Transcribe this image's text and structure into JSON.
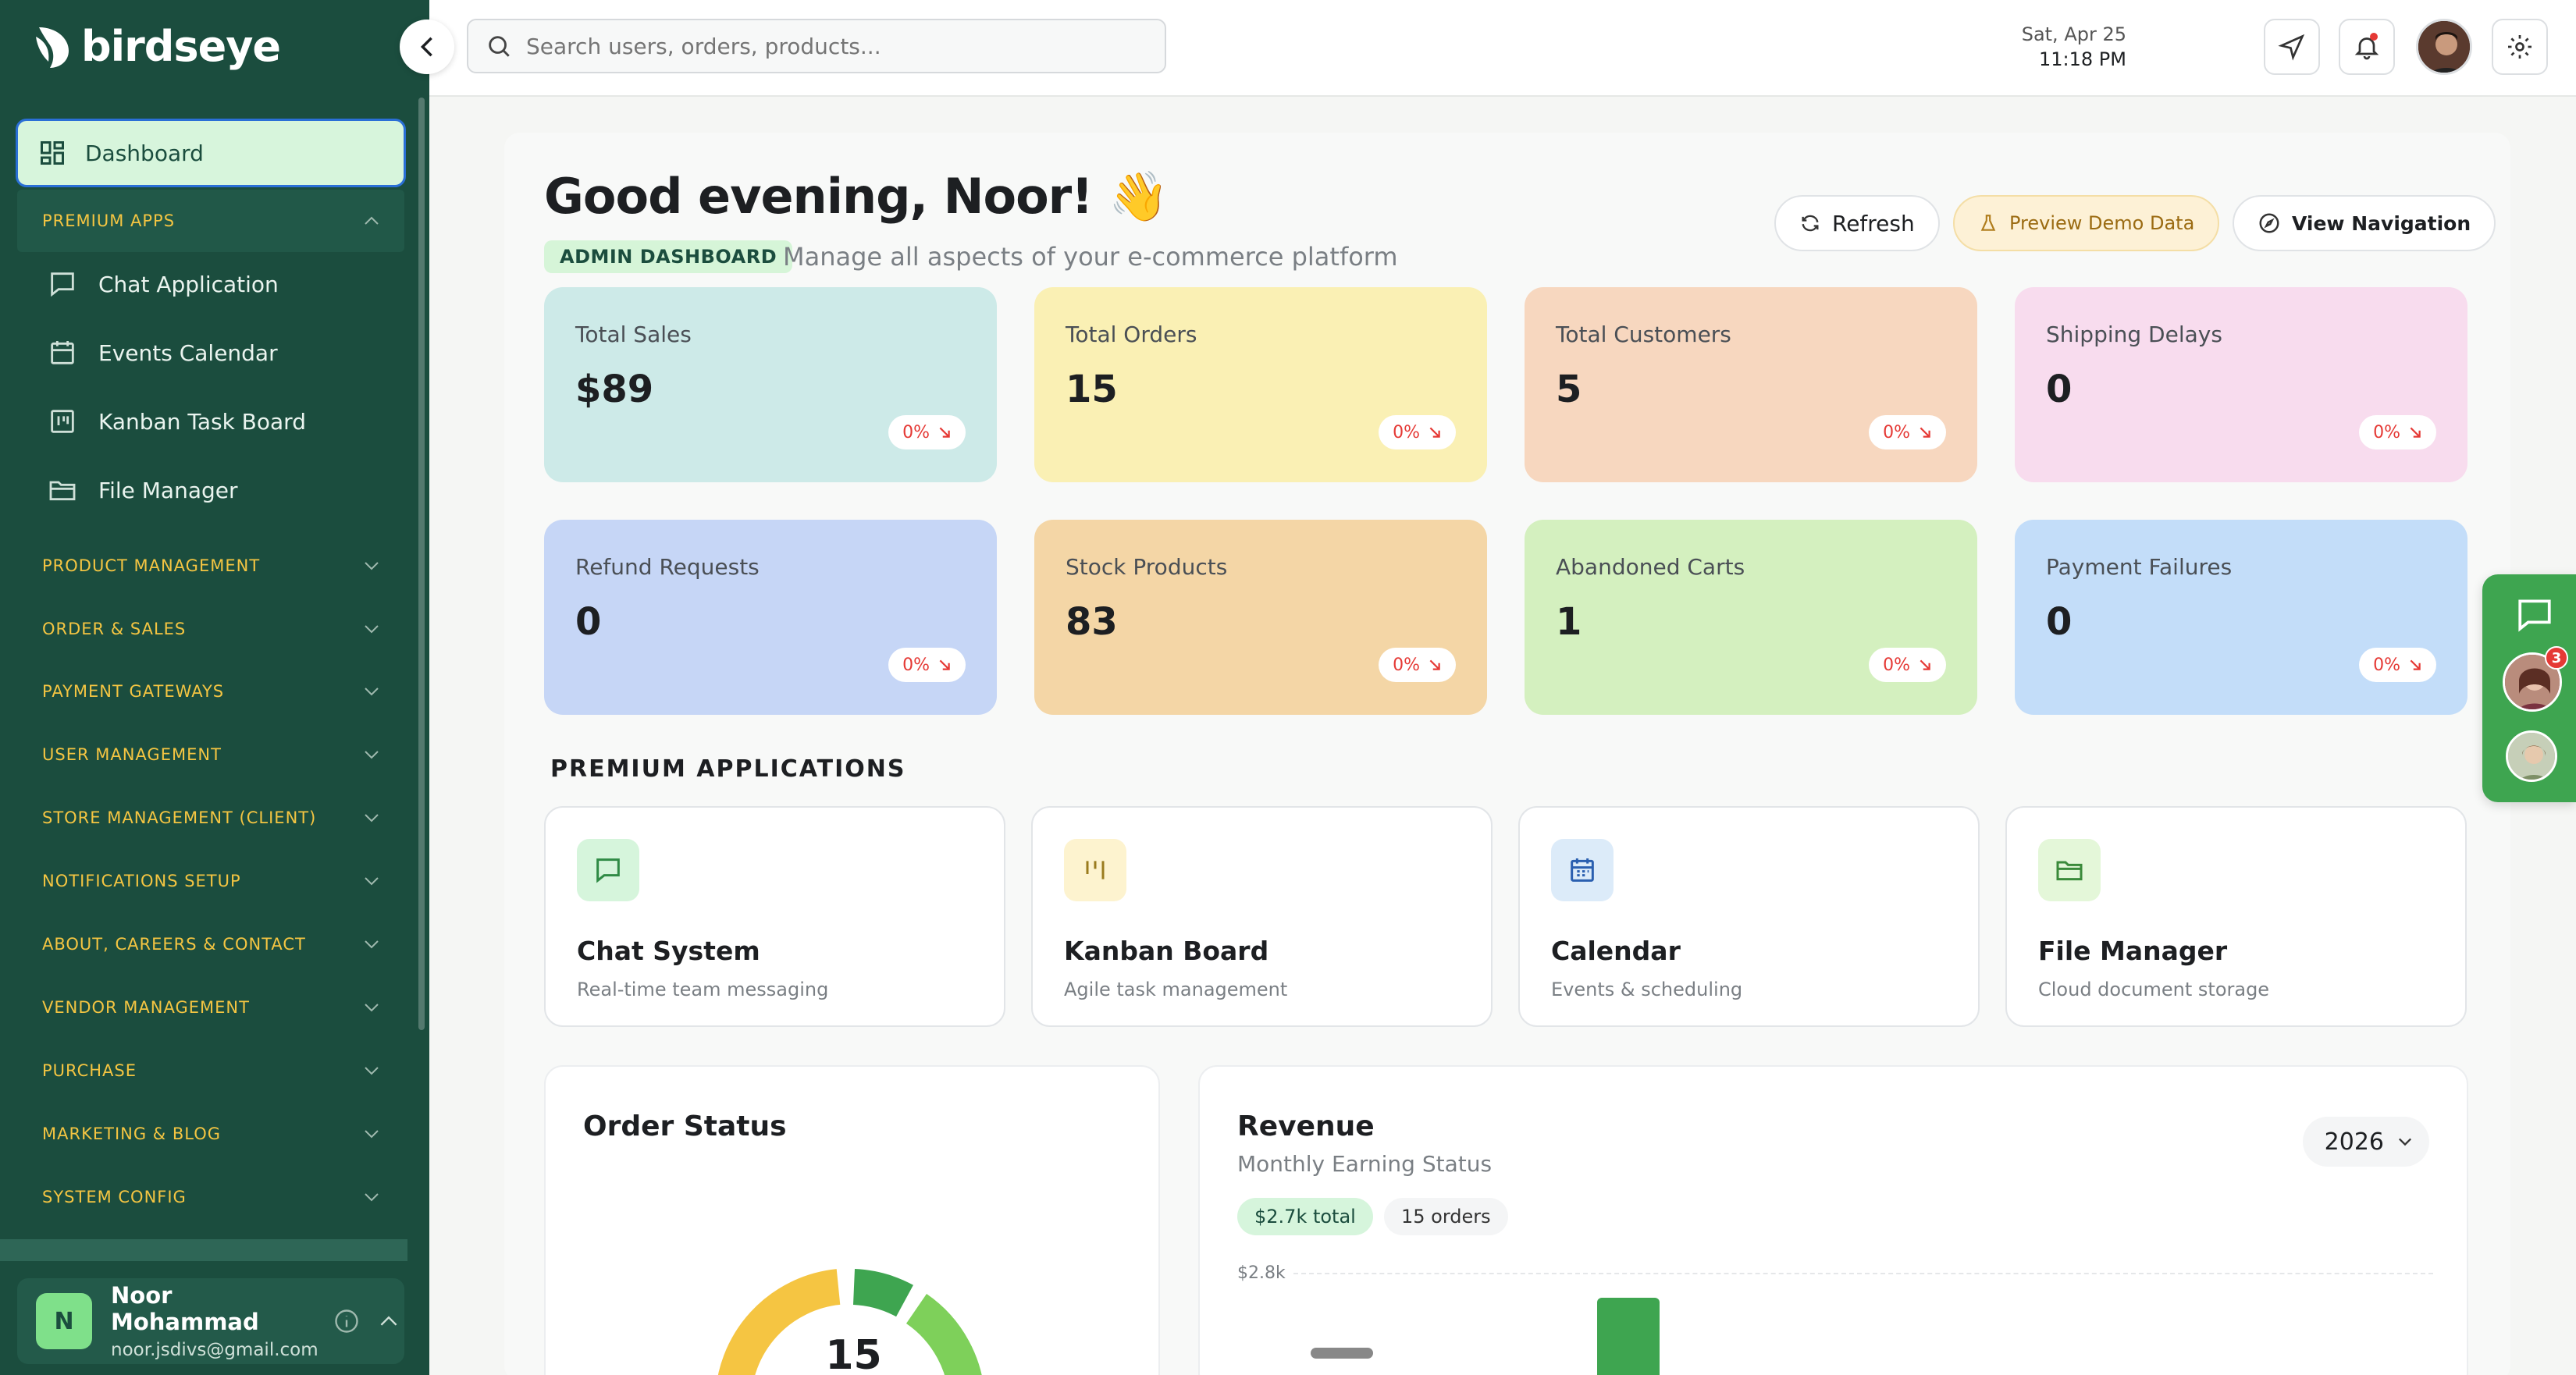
{
  "app": {
    "name": "birdseye"
  },
  "sidebar": {
    "dashboard_label": "Dashboard",
    "premium_section": "PREMIUM APPS",
    "premium_items": [
      {
        "label": "Chat Application",
        "icon": "chat-icon"
      },
      {
        "label": "Events Calendar",
        "icon": "calendar-icon"
      },
      {
        "label": "Kanban Task Board",
        "icon": "kanban-icon"
      },
      {
        "label": "File Manager",
        "icon": "folder-icon"
      }
    ],
    "sections": [
      "PRODUCT MANAGEMENT",
      "ORDER & SALES",
      "PAYMENT GATEWAYS",
      "USER MANAGEMENT",
      "STORE MANAGEMENT (CLIENT)",
      "NOTIFICATIONS SETUP",
      "ABOUT, CAREERS & CONTACT",
      "VENDOR MANAGEMENT",
      "PURCHASE",
      "MARKETING & BLOG",
      "SYSTEM CONFIG"
    ],
    "user": {
      "initial": "N",
      "name": "Noor Mohammad",
      "email": "noor.jsdivs@gmail.com"
    }
  },
  "topbar": {
    "search_placeholder": "Search users, orders, products...",
    "date": "Sat, Apr 25",
    "time": "11:18 PM"
  },
  "main": {
    "greeting": "Good evening, Noor! 👋",
    "badge": "ADMIN DASHBOARD",
    "subtitle": "Manage all aspects of your e-commerce platform",
    "actions": {
      "refresh": "Refresh",
      "demo": "Preview Demo Data",
      "nav": "View Navigation"
    },
    "stats": [
      {
        "label": "Total Sales",
        "value": "$89",
        "change": "0%",
        "color": "#cdeae8"
      },
      {
        "label": "Total Orders",
        "value": "15",
        "change": "0%",
        "color": "#faf0b4"
      },
      {
        "label": "Total Customers",
        "value": "5",
        "change": "0%",
        "color": "#f7d7bf"
      },
      {
        "label": "Shipping Delays",
        "value": "0",
        "change": "0%",
        "color": "#f8dcee"
      },
      {
        "label": "Refund Requests",
        "value": "0",
        "change": "0%",
        "color": "#c6d6f6"
      },
      {
        "label": "Stock Products",
        "value": "83",
        "change": "0%",
        "color": "#f4d6a6"
      },
      {
        "label": "Abandoned Carts",
        "value": "1",
        "change": "0%",
        "color": "#d4f0bf"
      },
      {
        "label": "Payment Failures",
        "value": "0",
        "change": "0%",
        "color": "#c3ddf9"
      }
    ],
    "premium_title": "PREMIUM APPLICATIONS",
    "apps": [
      {
        "title": "Chat System",
        "desc": "Real-time team messaging",
        "icon": "chat-icon",
        "bg": "#d6f5dc"
      },
      {
        "title": "Kanban Board",
        "desc": "Agile task management",
        "icon": "kanban-icon",
        "bg": "#fdf3cf"
      },
      {
        "title": "Calendar",
        "desc": "Events & scheduling",
        "icon": "calendar-icon",
        "bg": "#dcebf9"
      },
      {
        "title": "File Manager",
        "desc": "Cloud document storage",
        "icon": "folder-icon",
        "bg": "#e4f7d9"
      }
    ],
    "order_status": {
      "title": "Order Status",
      "center": "15"
    },
    "revenue": {
      "title": "Revenue",
      "subtitle": "Monthly Earning Status",
      "year": "2026",
      "total_pill": "$2.7k total",
      "orders_pill": "15 orders",
      "ytick": "$2.8k"
    }
  },
  "floating": {
    "badge_count": "3"
  }
}
